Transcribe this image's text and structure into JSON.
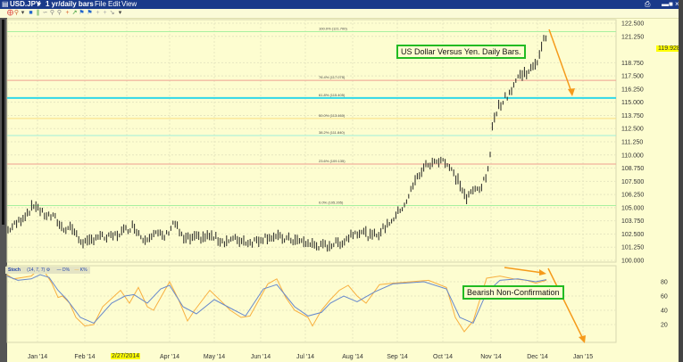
{
  "window": {
    "symbol": "USD.JPY",
    "period": "1 yr/daily bars",
    "menus": [
      "File",
      "Edit",
      "View"
    ],
    "toolbar_icons": [
      "crosshair-icon",
      "zoom-icon",
      "dropdown-icon",
      "bar-type-icon",
      "indicator-icon",
      "draw-icon",
      "zoom-in-icon",
      "zoom-out-icon",
      "crosshair2-icon",
      "line-icon",
      "flag-icon",
      "flag2-icon",
      "plus-icon",
      "plus2-icon",
      "tool-icon",
      "more-icon"
    ]
  },
  "annotations": {
    "title_note": "US Dollar Versus Yen. Daily Bars.",
    "stoch_note": "Bearish Non-Confirmation",
    "current_price": "119.928",
    "highlight_date": "2/27/2014"
  },
  "stoch_legend": {
    "name": "Stoch",
    "params": "(14, 7, 7)",
    "d_label": "D%",
    "k_label": "K%"
  },
  "chart_data": [
    {
      "type": "bar",
      "title": "USD.JPY 1 yr/daily bars",
      "subtitle": "US Dollar Versus Yen. Daily Bars.",
      "xlabel": "",
      "ylabel": "",
      "ylim": [
        100.0,
        122.5
      ],
      "yticks": [
        "122.500",
        "121.250",
        "119.928",
        "118.750",
        "117.500",
        "116.250",
        "115.000",
        "113.750",
        "112.500",
        "111.250",
        "110.000",
        "108.750",
        "107.500",
        "106.250",
        "105.000",
        "103.750",
        "102.500",
        "101.250",
        "100.000"
      ],
      "categories": [
        "Jan '14",
        "Feb '14",
        "2/27/2014",
        "Apr '14",
        "May '14",
        "Jun '14",
        "Jul '14",
        "Aug '14",
        "Sep '14",
        "Oct '14",
        "Nov '14",
        "Dec '14",
        "Jan '15"
      ],
      "approx_monthly_close": [
        104.0,
        102.3,
        102.1,
        102.5,
        101.8,
        102.2,
        101.9,
        102.9,
        104.5,
        109.5,
        108.0,
        118.5,
        119.9
      ],
      "fibonacci_levels": [
        {
          "label": "100.0% (121.700)",
          "value": 121.7,
          "color": "#a8f0a0"
        },
        {
          "label": "76.4% (117.075)",
          "value": 117.075,
          "color": "#f0a090"
        },
        {
          "label": "61.8% (115.405)",
          "value": 115.405,
          "color": "#30d8e8"
        },
        {
          "label": "50.0% (113.460)",
          "value": 113.46,
          "color": "#f8e080"
        },
        {
          "label": "38.2% (111.840)",
          "value": 111.84,
          "color": "#a0f0d8"
        },
        {
          "label": "23.6% (109.135)",
          "value": 109.135,
          "color": "#f0a090"
        },
        {
          "label": "0.0% (105.205)",
          "value": 105.205,
          "color": "#a8f0a0"
        }
      ],
      "grid": true,
      "legend_position": "none"
    },
    {
      "type": "line",
      "title": "Stoch (14, 7, 7)",
      "ylim": [
        0,
        100
      ],
      "yticks": [
        "80",
        "60",
        "40",
        "20"
      ],
      "series": [
        {
          "name": "D%",
          "color": "#6688cc"
        },
        {
          "name": "K%",
          "color": "#f8b040"
        }
      ],
      "grid": true,
      "legend_position": "top-left"
    }
  ]
}
